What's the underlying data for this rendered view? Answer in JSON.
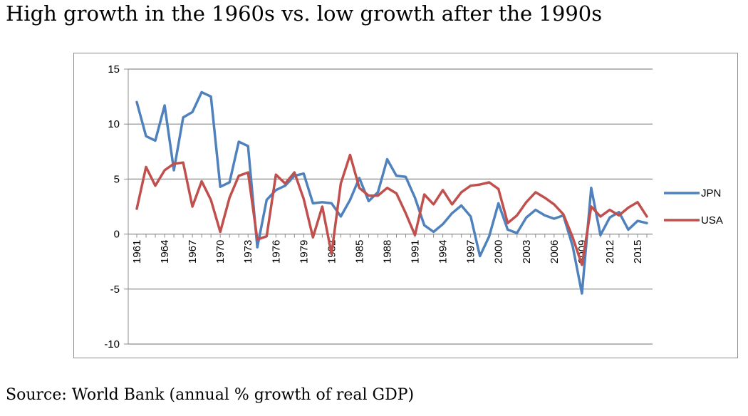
{
  "title": "High growth in the 1960s vs. low growth after the 1990s",
  "source": "Source:  World Bank (annual % growth of real GDP)",
  "chart_data": {
    "type": "line",
    "x": [
      1961,
      1962,
      1963,
      1964,
      1965,
      1966,
      1967,
      1968,
      1969,
      1970,
      1971,
      1972,
      1973,
      1974,
      1975,
      1976,
      1977,
      1978,
      1979,
      1980,
      1981,
      1982,
      1983,
      1984,
      1985,
      1986,
      1987,
      1988,
      1989,
      1990,
      1991,
      1992,
      1993,
      1994,
      1995,
      1996,
      1997,
      1998,
      1999,
      2000,
      2001,
      2002,
      2003,
      2004,
      2005,
      2006,
      2007,
      2008,
      2009,
      2010,
      2011,
      2012,
      2013,
      2014,
      2015,
      2016
    ],
    "x_tick_labels": [
      "1961",
      "1964",
      "1967",
      "1970",
      "1973",
      "1976",
      "1979",
      "1982",
      "1985",
      "1988",
      "1991",
      "1994",
      "1997",
      "2000",
      "2003",
      "2006",
      "2009",
      "2012",
      "2015"
    ],
    "ylim": [
      -10,
      15
    ],
    "y_ticks": [
      -10,
      -5,
      0,
      5,
      10,
      15
    ],
    "y_tick_labels": [
      "-10",
      "-5",
      "0",
      "5",
      "10",
      "15"
    ],
    "grid": "horizontal",
    "legend_position": "right",
    "series": [
      {
        "name": "JPN",
        "color": "#4f81bd",
        "values": [
          12.0,
          8.9,
          8.5,
          11.7,
          5.8,
          10.6,
          11.1,
          12.9,
          12.5,
          4.3,
          4.7,
          8.4,
          8.0,
          -1.2,
          3.1,
          4.0,
          4.4,
          5.3,
          5.5,
          2.8,
          2.9,
          2.8,
          1.6,
          3.1,
          5.1,
          3.0,
          3.8,
          6.8,
          5.3,
          5.2,
          3.3,
          0.8,
          0.2,
          0.9,
          1.9,
          2.6,
          1.6,
          -2.0,
          -0.2,
          2.8,
          0.4,
          0.1,
          1.5,
          2.2,
          1.7,
          1.4,
          1.7,
          -1.1,
          -5.4,
          4.2,
          -0.1,
          1.5,
          2.0,
          0.4,
          1.2,
          1.0
        ]
      },
      {
        "name": "USA",
        "color": "#c0504d",
        "values": [
          2.3,
          6.1,
          4.4,
          5.8,
          6.4,
          6.5,
          2.5,
          4.8,
          3.1,
          0.2,
          3.3,
          5.3,
          5.6,
          -0.5,
          -0.2,
          5.4,
          4.6,
          5.6,
          3.2,
          -0.3,
          2.5,
          -1.8,
          4.6,
          7.2,
          4.2,
          3.5,
          3.5,
          4.2,
          3.7,
          1.9,
          -0.1,
          3.6,
          2.7,
          4.0,
          2.7,
          3.8,
          4.4,
          4.5,
          4.7,
          4.1,
          1.0,
          1.7,
          2.9,
          3.8,
          3.3,
          2.7,
          1.8,
          -0.3,
          -2.8,
          2.5,
          1.6,
          2.2,
          1.7,
          2.4,
          2.9,
          1.6
        ]
      }
    ]
  }
}
